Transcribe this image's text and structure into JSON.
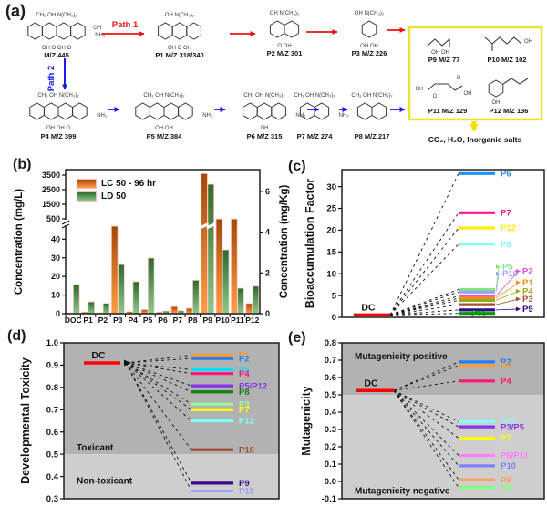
{
  "figure": {
    "panel_a": {
      "label": "(a)",
      "path1": "Path 1",
      "path2": "Path 2",
      "mineralization": "CO₂, H₂O, Inorganic salts",
      "molecules": [
        {
          "id": "m445",
          "label": "M/Z 445",
          "top": "CH₃ OH N(CH₃)₂",
          "right1": "OH",
          "right2": "NH₂",
          "bottom": "OH O OH O"
        },
        {
          "id": "p1",
          "label": "P1  M/Z 318/340",
          "top": "OH  N(CH₃)₂",
          "bottom": "OH O OH"
        },
        {
          "id": "p2",
          "label": "P2 M/Z 301",
          "top": "OH N(CH₃)₂",
          "bottom": "O OH"
        },
        {
          "id": "p3",
          "label": "P3  M/Z 226",
          "top": "OH N(CH₃)₂",
          "bottom": "OH OH"
        },
        {
          "id": "p4",
          "label": "P4 M/Z 399",
          "top": "CH₃ OH N(CH₃)₂",
          "right2": "NH₂",
          "bottom": "OH OH O"
        },
        {
          "id": "p5",
          "label": "P5  M/Z 384",
          "top": "CH₃ OH N(CH₃)₂",
          "right2": "NH₂",
          "bottom": "OH OH"
        },
        {
          "id": "p6",
          "label": "P6  M/Z 315",
          "top": "CH₃ OH N(CH₃)₂",
          "right2": "NH₂",
          "bottom": "OH"
        },
        {
          "id": "p7",
          "label": "P7  M/Z 274",
          "top": "CH₃ OH N(CH₃)₂",
          "right2": "NH₂"
        },
        {
          "id": "p8",
          "label": "P8  M/Z 217",
          "top": "CH₃ OH N(CH₃)₂"
        },
        {
          "id": "p9",
          "label": "P9  M/Z 77",
          "bottom": "OH  OH"
        },
        {
          "id": "p10",
          "label": "P10  M/Z 102",
          "right1": "OH"
        },
        {
          "id": "p11",
          "label": "P11  M/Z 129",
          "left": "OH",
          "top": "O",
          "bottom": "O",
          "right1": "OH"
        },
        {
          "id": "p12",
          "label": "P12  M/Z 136",
          "bottom": "OH"
        }
      ]
    }
  },
  "chart_data": [
    {
      "id": "b",
      "panel_label": "(b)",
      "type": "bar",
      "ylabel_left": "Concentration (mg/L)",
      "ylabel_right": "Concentration (mg/Kg)",
      "legend": [
        "LC 50 - 96 hr",
        "LD 50"
      ],
      "categories": [
        "DOC",
        "P1",
        "P2",
        "P3",
        "P4",
        "P5",
        "P6",
        "P7",
        "P8",
        "P9",
        "P10",
        "P11",
        "P12"
      ],
      "series": [
        {
          "name": "LC 50 - 96 hr",
          "axis": "left",
          "unit": "mg/L",
          "color_top": "#a64708",
          "color_bottom": "#ff9e45",
          "values": [
            0.4,
            0.9,
            0.5,
            47,
            1.1,
            2.2,
            0.8,
            3.8,
            2.9,
            3600,
            490,
            490,
            5.5
          ]
        },
        {
          "name": "LD 50",
          "axis": "right",
          "unit": "mg/Kg",
          "color_top": "#2d6a2d",
          "color_bottom": "#8cc98c",
          "values": [
            1.42,
            0.58,
            0.51,
            2.41,
            1.57,
            2.73,
            0.13,
            0.14,
            1.64,
            6.35,
            3.13,
            1.25,
            1.35
          ]
        }
      ],
      "left_axis": {
        "lower_ticks": [
          "0",
          "10",
          "20",
          "30",
          "40"
        ],
        "upper_ticks": [
          "500",
          "1500",
          "2500",
          "3500"
        ],
        "break": true,
        "lower_max": 48
      },
      "right_axis": {
        "ticks": [
          "0",
          "2",
          "4",
          "6"
        ],
        "max": 7.07
      }
    },
    {
      "id": "c",
      "panel_label": "(c)",
      "type": "line",
      "ylabel": "Bioaccumulation Factor",
      "ytick_labels": [
        "0",
        "5",
        "10",
        "15",
        "20",
        "25",
        "30"
      ],
      "ylim": [
        0,
        33.9
      ],
      "dc": {
        "label": "DC",
        "value": 0.55,
        "color": "#ff0000"
      },
      "items": [
        {
          "label": "P6",
          "value": 33.0,
          "color": "#1e90ff",
          "label_at": 33.0
        },
        {
          "label": "P7",
          "value": 24.0,
          "color": "#ff1493",
          "label_at": 24.0
        },
        {
          "label": "P12",
          "value": 20.5,
          "color": "#ffee00",
          "label_at": 20.5
        },
        {
          "label": "P8",
          "value": 16.8,
          "color": "#7fffff",
          "label_at": 16.8
        },
        {
          "label": "P5",
          "value": 6.4,
          "color": "#7ee87e",
          "label_at": 11.6,
          "leader": "near"
        },
        {
          "label": "P10",
          "value": 5.8,
          "color": "#9f9fff",
          "label_at": 10.0,
          "leader": "near"
        },
        {
          "label": "P2",
          "value": 4.9,
          "color": "#e24fe2",
          "label_at": 10.6,
          "leader": "far"
        },
        {
          "label": "P1",
          "value": 4.4,
          "color": "#ff8c1a",
          "label_at": 8.0,
          "leader": "far"
        },
        {
          "label": "P4",
          "value": 3.9,
          "color": "#9aa818",
          "label_at": 6.0,
          "leader": "far"
        },
        {
          "label": "P3",
          "value": 2.9,
          "color": "#a0522d",
          "label_at": 4.2,
          "leader": "far"
        },
        {
          "label": "P9",
          "value": 1.7,
          "color": "#2e0a8a",
          "label_at": 1.9,
          "leader": "far"
        },
        {
          "label": "P11",
          "value": 0.9,
          "color": "#009900",
          "inside": true
        }
      ]
    },
    {
      "id": "d",
      "panel_label": "(d)",
      "type": "line",
      "ylabel": "Developmental Toxicity",
      "ytick_labels": [
        "0.3",
        "0.4",
        "0.5",
        "0.6",
        "0.7",
        "0.8",
        "0.9",
        "1.0"
      ],
      "ylim": [
        0.3,
        1.0
      ],
      "zones": {
        "threshold": 0.5,
        "upper_label": "Toxicant",
        "lower_label": "Non-toxicant",
        "upper_color": "#b2b2b2",
        "lower_color": "#cecece",
        "upper_label_y": 0.53,
        "lower_label_y": 0.38
      },
      "dc": {
        "label": "DC",
        "value": 0.91,
        "color": "#ff0000"
      },
      "items": [
        {
          "label": "P1",
          "value": 0.945,
          "color": "#ff9933"
        },
        {
          "label": "P2",
          "value": 0.93,
          "color": "#1e7fff"
        },
        {
          "label": "P6",
          "value": 0.88,
          "color": "#00dfff"
        },
        {
          "label": "P4",
          "value": 0.862,
          "color": "#ff1477"
        },
        {
          "label": "P5/P12",
          "value": 0.807,
          "color": "#8833ee"
        },
        {
          "label": "P8",
          "value": 0.78,
          "color": "#158015"
        },
        {
          "label": "P3",
          "value": 0.725,
          "color": "#98fb98"
        },
        {
          "label": "P7",
          "value": 0.7,
          "color": "#ffff00"
        },
        {
          "label": "P12",
          "value": 0.65,
          "color": "#7fffff"
        },
        {
          "label": "P10",
          "value": 0.52,
          "color": "#a0522d"
        },
        {
          "label": "P9",
          "value": 0.37,
          "color": "#3d0a8c"
        },
        {
          "label": "P11",
          "value": 0.335,
          "color": "#9f9fff"
        }
      ]
    },
    {
      "id": "e",
      "panel_label": "(e)",
      "type": "line",
      "ylabel": "Mutagenicity",
      "ytick_labels": [
        "-0.1",
        "0.0",
        "0.1",
        "0.2",
        "0.3",
        "0.4",
        "0.5",
        "0.6",
        "0.7",
        "0.8"
      ],
      "ylim": [
        -0.1,
        0.8
      ],
      "zones": {
        "threshold": 0.5,
        "upper_label": "Mutagenicity positive",
        "lower_label": "Mutagenicity negative",
        "upper_color": "#b2b2b2",
        "lower_color": "#cecece",
        "upper_label_y": 0.72,
        "lower_label_y": -0.055
      },
      "dc": {
        "label": "DC",
        "value": 0.525,
        "color": "#ff0000"
      },
      "items": [
        {
          "label": "P2",
          "value": 0.69,
          "color": "#1e7fff"
        },
        {
          "label": "P1",
          "value": 0.67,
          "color": "#ff9933"
        },
        {
          "label": "P4",
          "value": 0.58,
          "color": "#ff1477"
        },
        {
          "label": "P12",
          "value": 0.345,
          "color": "#7fffff"
        },
        {
          "label": "P3/P5",
          "value": 0.315,
          "color": "#8833ee"
        },
        {
          "label": "P7",
          "value": 0.25,
          "color": "#ffff00"
        },
        {
          "label": "P6/P11",
          "value": 0.15,
          "color": "#ff80ff"
        },
        {
          "label": "P10",
          "value": 0.09,
          "color": "#8080ff"
        },
        {
          "label": "P9",
          "value": 0.01,
          "color": "#ffa060"
        },
        {
          "label": "P8",
          "value": -0.035,
          "color": "#7fff7f"
        }
      ]
    }
  ]
}
